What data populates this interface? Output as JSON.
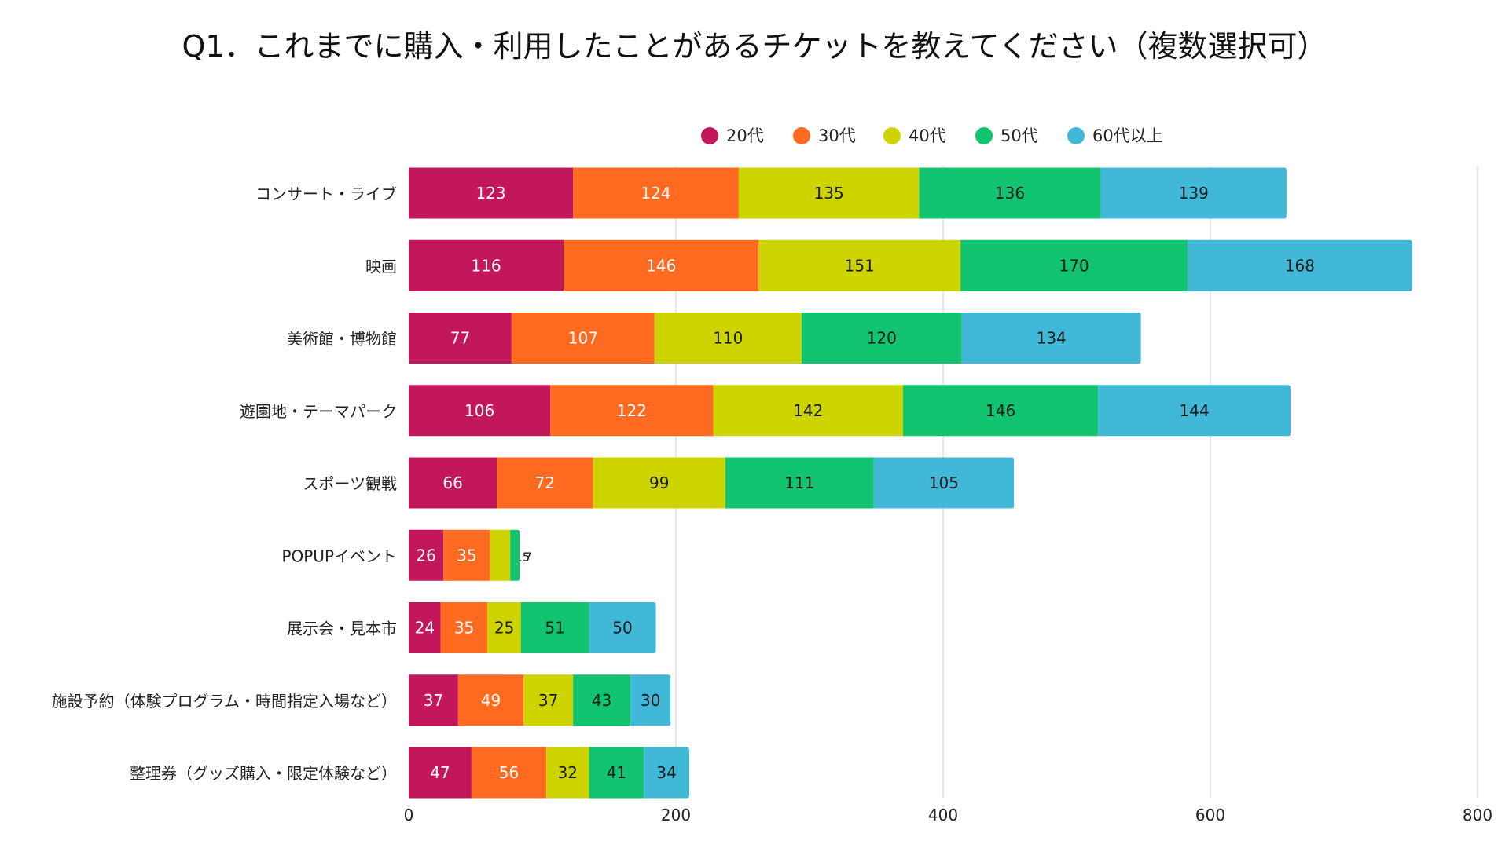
{
  "chart_data": {
    "type": "bar",
    "orientation": "horizontal",
    "stacked": true,
    "title": "Q1．これまでに購入・利用したことがあるチケットを教えてください（複数選択可）",
    "categories": [
      "コンサート・ライブ",
      "映画",
      "美術館・博物館",
      "遊園地・テーマパーク",
      "スポーツ観戦",
      "POPUPイベント",
      "展示会・見本市",
      "施設予約（体験プログラム・時間指定入場など）",
      "整理券（グッズ購入・限定体験など）"
    ],
    "series": [
      {
        "name": "20代",
        "color": "#C2185B",
        "label_color": "#ffffff",
        "values": [
          123,
          116,
          77,
          106,
          66,
          26,
          24,
          37,
          47
        ]
      },
      {
        "name": "30代",
        "color": "#FF6A21",
        "label_color": "#ffffff",
        "values": [
          124,
          146,
          107,
          122,
          72,
          35,
          35,
          49,
          56
        ]
      },
      {
        "name": "40代",
        "color": "#CDD400",
        "label_color": "#1a1a1a",
        "values": [
          135,
          151,
          110,
          142,
          99,
          15,
          25,
          37,
          32
        ]
      },
      {
        "name": "50代",
        "color": "#12C46F",
        "label_color": "#1a1a1a",
        "values": [
          136,
          170,
          120,
          146,
          111,
          7,
          51,
          43,
          41
        ]
      },
      {
        "name": "60代以上",
        "color": "#42B8D8",
        "label_color": "#1a1a1a",
        "values": [
          139,
          168,
          134,
          144,
          105,
          0,
          50,
          30,
          34
        ]
      }
    ],
    "xlim": [
      0,
      800
    ],
    "x_ticks": [
      0,
      200,
      400,
      600,
      800
    ],
    "xlabel": "",
    "ylabel": "",
    "grid": true,
    "legend_position": "top-center"
  }
}
